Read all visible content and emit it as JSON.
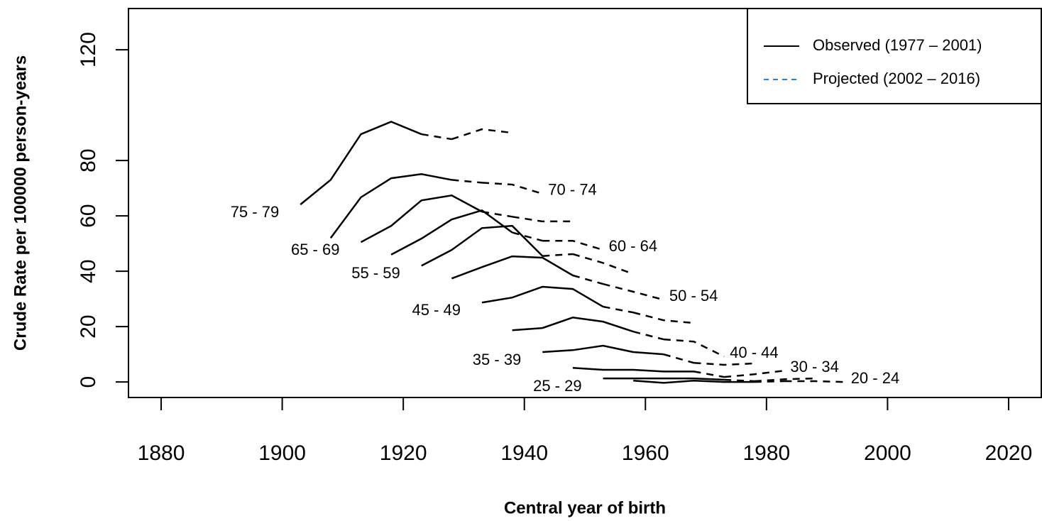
{
  "chart_data": {
    "type": "line",
    "xlabel": "Central year of birth",
    "ylabel": "Crude Rate per 100000 person-years",
    "xlim": [
      1874.6,
      2025.4
    ],
    "ylim": [
      -5.6,
      134.9
    ],
    "xticks": [
      1880,
      1900,
      1920,
      1940,
      1960,
      1980,
      2000,
      2020
    ],
    "yticks": [
      0,
      20,
      40,
      60,
      80,
      120
    ],
    "legend_position": "top-right",
    "legend": [
      {
        "label": "Observed (1977 – 2001)",
        "color": "#000000",
        "dashed": false
      },
      {
        "label": "Projected (2002 – 2016)",
        "color": "#2b7de9",
        "dashed": true
      }
    ],
    "line_color": "#000000",
    "series": [
      {
        "name": "75 - 79",
        "label_side": "left",
        "observed": {
          "x": [
            1903,
            1908,
            1913,
            1918,
            1923
          ],
          "values": [
            64.1,
            73,
            89.5,
            94,
            89.5
          ]
        },
        "projected": {
          "x": [
            1928,
            1933,
            1938
          ],
          "values": [
            87.7,
            91.3,
            90
          ]
        }
      },
      {
        "name": "70 - 74",
        "label_side": "right",
        "observed": {
          "x": [
            1908,
            1913,
            1918,
            1923,
            1928
          ],
          "values": [
            52,
            66.7,
            73.6,
            75.1,
            73
          ]
        },
        "projected": {
          "x": [
            1933,
            1938,
            1943
          ],
          "values": [
            72,
            71.3,
            68
          ]
        }
      },
      {
        "name": "65 - 69",
        "label_side": "left",
        "observed": {
          "x": [
            1913,
            1918,
            1923,
            1928,
            1933
          ],
          "values": [
            50.5,
            56.4,
            65.6,
            67.4,
            61.5
          ]
        },
        "projected": {
          "x": [
            1938,
            1943,
            1948
          ],
          "values": [
            59.7,
            58,
            58
          ]
        }
      },
      {
        "name": "60 - 64",
        "label_side": "right",
        "observed": {
          "x": [
            1918,
            1923,
            1928,
            1933,
            1938
          ],
          "values": [
            46,
            51.8,
            58.7,
            62,
            54
          ]
        },
        "projected": {
          "x": [
            1943,
            1948,
            1953
          ],
          "values": [
            51,
            51,
            47.7
          ]
        }
      },
      {
        "name": "55 - 59",
        "label_side": "left",
        "observed": {
          "x": [
            1923,
            1928,
            1933,
            1938,
            1943
          ],
          "values": [
            42,
            47.7,
            55.6,
            56.4,
            45.5
          ]
        },
        "projected": {
          "x": [
            1948,
            1953,
            1958
          ],
          "values": [
            46.2,
            43,
            39
          ]
        }
      },
      {
        "name": "50 - 54",
        "label_side": "right",
        "observed": {
          "x": [
            1928,
            1933,
            1938,
            1943,
            1948
          ],
          "values": [
            37.4,
            41.5,
            45.4,
            44.9,
            38.5
          ]
        },
        "projected": {
          "x": [
            1953,
            1958,
            1963
          ],
          "values": [
            35.4,
            32.6,
            29.7
          ]
        }
      },
      {
        "name": "45 - 49",
        "label_side": "left",
        "observed": {
          "x": [
            1933,
            1938,
            1943,
            1948,
            1953
          ],
          "values": [
            28.7,
            30.5,
            34.4,
            33.6,
            27.2
          ]
        },
        "projected": {
          "x": [
            1958,
            1963,
            1968
          ],
          "values": [
            25.1,
            22.3,
            21.3
          ]
        }
      },
      {
        "name": "40 - 44",
        "label_side": "right",
        "observed": {
          "x": [
            1938,
            1943,
            1948,
            1953,
            1958
          ],
          "values": [
            18.7,
            19.5,
            23.3,
            21.8,
            18.2
          ]
        },
        "projected": {
          "x": [
            1963,
            1968,
            1973
          ],
          "values": [
            15.4,
            14.6,
            9.2
          ]
        }
      },
      {
        "name": "35 - 39",
        "label_side": "left",
        "observed": {
          "x": [
            1943,
            1948,
            1953,
            1958,
            1963
          ],
          "values": [
            10.8,
            11.5,
            13.1,
            10.8,
            10
          ]
        },
        "projected": {
          "x": [
            1968,
            1973,
            1978
          ],
          "values": [
            6.9,
            6.2,
            6.7
          ]
        }
      },
      {
        "name": "30 - 34",
        "label_side": "right",
        "observed": {
          "x": [
            1948,
            1953,
            1958,
            1963,
            1968
          ],
          "values": [
            5.1,
            4.4,
            4.4,
            3.8,
            3.8
          ]
        },
        "projected": {
          "x": [
            1973,
            1978,
            1983
          ],
          "values": [
            1.8,
            2.8,
            4.1
          ]
        }
      },
      {
        "name": "25 - 29",
        "label_side": "left",
        "observed": {
          "x": [
            1953,
            1958,
            1963,
            1968,
            1973
          ],
          "values": [
            1.3,
            1.3,
            1.3,
            1.3,
            0.8
          ]
        },
        "projected": {
          "x": [
            1978,
            1983,
            1988
          ],
          "values": [
            0.3,
            1,
            1.3
          ]
        }
      },
      {
        "name": "20 - 24",
        "label_side": "right",
        "observed": {
          "x": [
            1958,
            1963,
            1968,
            1973,
            1978
          ],
          "values": [
            0.5,
            -0.3,
            0.5,
            0,
            0
          ]
        },
        "projected": {
          "x": [
            1983,
            1988,
            1993
          ],
          "values": [
            0.3,
            0.3,
            0
          ]
        }
      }
    ]
  }
}
